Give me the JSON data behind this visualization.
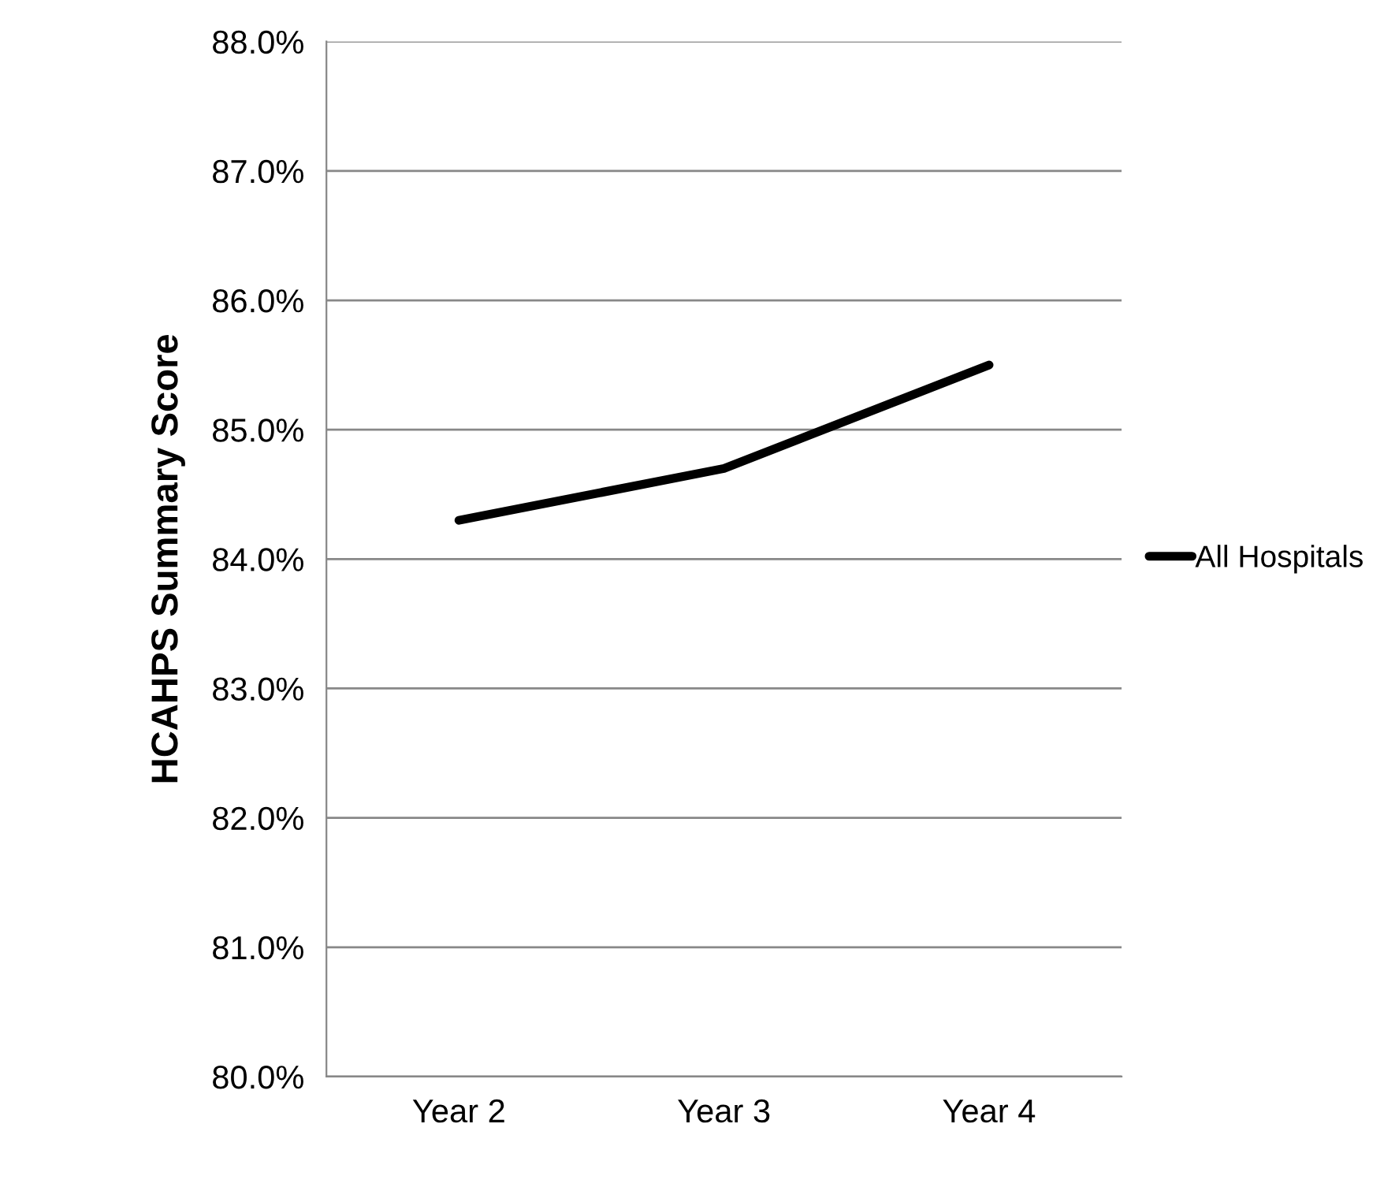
{
  "chart_data": {
    "type": "line",
    "ylabel": "HCAHPS Summary Score",
    "categories": [
      "Year 2",
      "Year 3",
      "Year 4"
    ],
    "series": [
      {
        "name": "All Hospitals",
        "color": "#000000",
        "values": [
          84.3,
          84.7,
          85.5
        ]
      }
    ],
    "ylim": [
      80,
      88
    ],
    "yticks": [
      {
        "value": 80,
        "label": "80.0%"
      },
      {
        "value": 81,
        "label": "81.0%"
      },
      {
        "value": 82,
        "label": "82.0%"
      },
      {
        "value": 83,
        "label": "83.0%"
      },
      {
        "value": 84,
        "label": "84.0%"
      },
      {
        "value": 85,
        "label": "85.0%"
      },
      {
        "value": 86,
        "label": "86.0%"
      },
      {
        "value": 87,
        "label": "87.0%"
      },
      {
        "value": 88,
        "label": "88.0%"
      }
    ],
    "grid": "y",
    "legend": "right",
    "marker": "none",
    "line_style": "solid"
  }
}
